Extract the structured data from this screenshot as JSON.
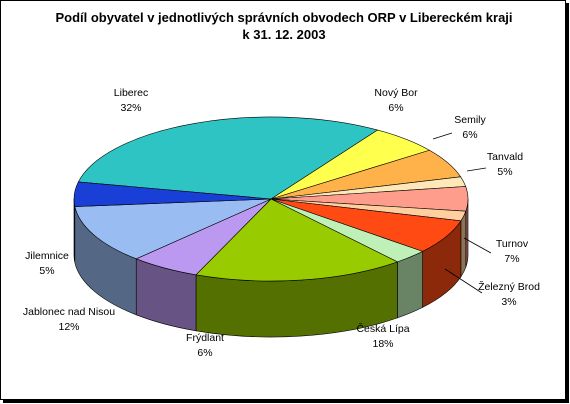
{
  "chart_data": {
    "type": "pie",
    "title_lines": [
      "Podíl obyvatel v jednotlivých správních obvodech ORP v Libereckém kraji",
      "k 31. 12. 2003"
    ],
    "slices": [
      {
        "name": "Liberec",
        "value": 32,
        "label": "32%",
        "color": "#2ec4c4"
      },
      {
        "name": "Nový Bor",
        "value": 6,
        "label": "6%",
        "color": "#ffff4d"
      },
      {
        "name": "Semily",
        "value": 6,
        "label": "6%",
        "color": "#ffb14a"
      },
      {
        "name": "",
        "value": 2,
        "label": "",
        "color": "#ffe8b8"
      },
      {
        "name": "Tanvald",
        "value": 5,
        "label": "5%",
        "color": "#ff9d8c"
      },
      {
        "name": "",
        "value": 2,
        "label": "",
        "color": "#ffcf9f"
      },
      {
        "name": "Turnov",
        "value": 7,
        "label": "7%",
        "color": "#ff4a14"
      },
      {
        "name": "Železný Brod",
        "value": 3,
        "label": "3%",
        "color": "#bff0b8"
      },
      {
        "name": "Česká Lípa",
        "value": 18,
        "label": "18%",
        "color": "#99cc00"
      },
      {
        "name": "Frýdlant",
        "value": 6,
        "label": "6%",
        "color": "#bb99f0"
      },
      {
        "name": "Jablonec nad Nisou",
        "value": 12,
        "label": "12%",
        "color": "#99bcf2"
      },
      {
        "name": "Jilemnice",
        "value": 5,
        "label": "5%",
        "color": "#1a3fd6"
      }
    ],
    "legend": "none",
    "labels": "outside with leader lines"
  }
}
